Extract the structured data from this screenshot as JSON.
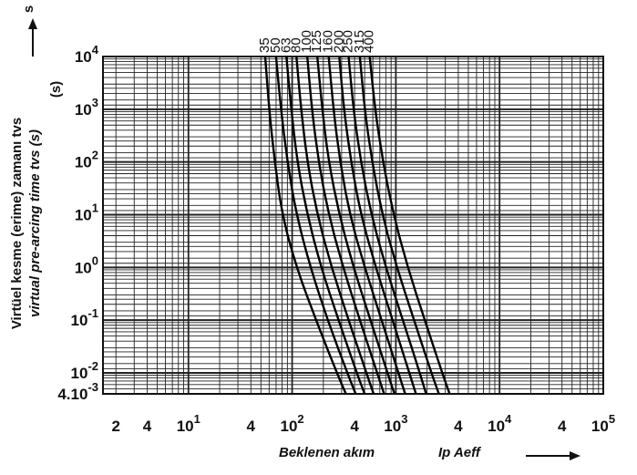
{
  "chart_data": {
    "type": "line",
    "x_scale": "log",
    "y_scale": "log",
    "xlim": [
      1.5,
      100000
    ],
    "ylim": [
      0.004,
      10000
    ],
    "grid": true,
    "x_ticks": [
      {
        "value": 2,
        "label": "2"
      },
      {
        "value": 4,
        "label": "4"
      },
      {
        "value": 10,
        "label": "10",
        "exp": "1"
      },
      {
        "value": 40,
        "label": "4"
      },
      {
        "value": 100,
        "label": "10",
        "exp": "2"
      },
      {
        "value": 400,
        "label": "4"
      },
      {
        "value": 1000,
        "label": "10",
        "exp": "3"
      },
      {
        "value": 4000,
        "label": "4"
      },
      {
        "value": 10000,
        "label": "10",
        "exp": "4"
      },
      {
        "value": 40000,
        "label": "4"
      },
      {
        "value": 100000,
        "label": "10",
        "exp": "5"
      }
    ],
    "y_ticks": [
      {
        "value": 10000,
        "label": "10",
        "exp": "4"
      },
      {
        "value": 1000,
        "label": "10",
        "exp": "3"
      },
      {
        "value": 100,
        "label": "10",
        "exp": "2"
      },
      {
        "value": 10,
        "label": "10",
        "exp": "1"
      },
      {
        "value": 1,
        "label": "10",
        "exp": "0"
      },
      {
        "value": 0.1,
        "label": "10",
        "exp": "-1"
      },
      {
        "value": 0.01,
        "label": "10",
        "exp": "-2"
      },
      {
        "value": 0.004,
        "label": "4.10",
        "exp": "-3"
      }
    ],
    "xlabel": "Beklenen akım",
    "xlabel_symbol": "Ip Aeff",
    "ylabel": "Virtüel kesme (erime) zamanı tvs",
    "ylabel_en": "virtual pre-arcing time tvs (s)",
    "y_unit": "(s)",
    "y_arrow_label": "s",
    "series": [
      {
        "name": "35",
        "t": [
          10000,
          1000,
          100,
          10,
          1,
          0.1,
          0.01,
          0.004
        ],
        "x": [
          55,
          60,
          68,
          80,
          110,
          170,
          270,
          330
        ]
      },
      {
        "name": "50",
        "t": [
          10000,
          1000,
          100,
          10,
          1,
          0.1,
          0.01,
          0.004
        ],
        "x": [
          70,
          78,
          90,
          110,
          150,
          220,
          340,
          410
        ]
      },
      {
        "name": "63",
        "t": [
          10000,
          1000,
          100,
          10,
          1,
          0.1,
          0.01,
          0.004
        ],
        "x": [
          88,
          98,
          112,
          140,
          190,
          280,
          420,
          500
        ]
      },
      {
        "name": "80",
        "t": [
          10000,
          1000,
          100,
          10,
          1,
          0.1,
          0.01,
          0.004
        ],
        "x": [
          110,
          122,
          140,
          175,
          240,
          350,
          520,
          610
        ]
      },
      {
        "name": "100",
        "t": [
          10000,
          1000,
          100,
          10,
          1,
          0.1,
          0.01,
          0.004
        ],
        "x": [
          140,
          155,
          180,
          225,
          310,
          450,
          660,
          770
        ]
      },
      {
        "name": "125",
        "t": [
          10000,
          1000,
          100,
          10,
          1,
          0.1,
          0.01,
          0.004
        ],
        "x": [
          175,
          195,
          225,
          285,
          390,
          570,
          830,
          970
        ]
      },
      {
        "name": "160",
        "t": [
          10000,
          1000,
          100,
          10,
          1,
          0.1,
          0.01,
          0.004
        ],
        "x": [
          225,
          250,
          290,
          360,
          500,
          730,
          1060,
          1230
        ]
      },
      {
        "name": "200",
        "t": [
          10000,
          1000,
          100,
          10,
          1,
          0.1,
          0.01,
          0.004
        ],
        "x": [
          285,
          315,
          370,
          460,
          640,
          930,
          1350,
          1560
        ]
      },
      {
        "name": "250",
        "t": [
          10000,
          1000,
          100,
          10,
          1,
          0.1,
          0.01,
          0.004
        ],
        "x": [
          350,
          390,
          460,
          580,
          800,
          1170,
          1700,
          1960
        ]
      },
      {
        "name": "315",
        "t": [
          10000,
          1000,
          100,
          10,
          1,
          0.1,
          0.01,
          0.004
        ],
        "x": [
          450,
          500,
          590,
          740,
          1020,
          1500,
          2200,
          2600
        ]
      },
      {
        "name": "400",
        "t": [
          10000,
          1000,
          100,
          10,
          1,
          0.1,
          0.01,
          0.004
        ],
        "x": [
          560,
          630,
          750,
          950,
          1300,
          1900,
          2800,
          3300
        ]
      }
    ]
  }
}
